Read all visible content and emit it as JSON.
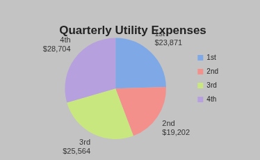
{
  "chart_data": {
    "type": "pie",
    "title": "Quarterly Utility Expenses",
    "categories": [
      "1st",
      "2nd",
      "3rd",
      "4th"
    ],
    "values": [
      23871,
      19202,
      25564,
      28704
    ],
    "value_labels": [
      "$23,871",
      "$19,202",
      "$25,564",
      "$28,704"
    ],
    "colors": [
      "#7ea9e6",
      "#f4908c",
      "#c8e77f",
      "#b7a0de"
    ],
    "data_labels": true,
    "legend": "right"
  }
}
